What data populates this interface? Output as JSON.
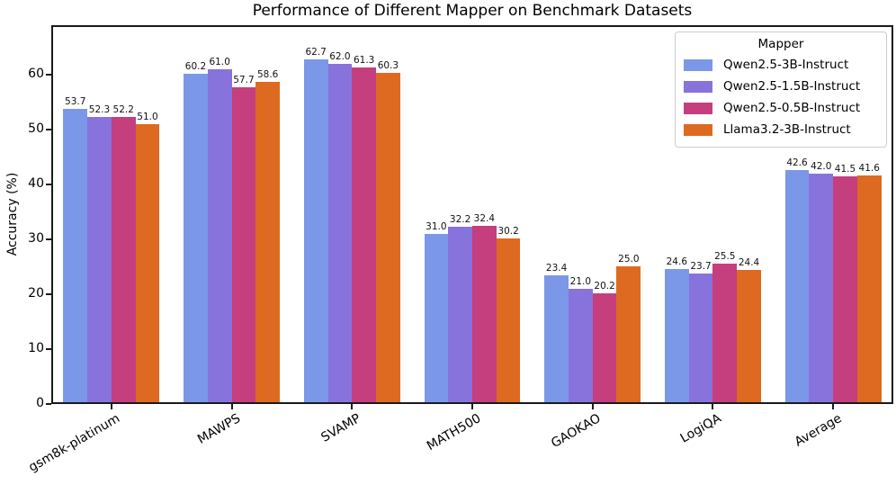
{
  "figure": {
    "background": "#ffffff",
    "spine_color": "#1a1a1a"
  },
  "chart_data": {
    "type": "bar",
    "title": "Performance of Different Mapper on Benchmark Datasets",
    "xlabel": "",
    "ylabel": "Accuracy (%)",
    "categories": [
      "gsm8k-platinum",
      "MAWPS",
      "SVAMP",
      "MATH500",
      "GAOKAO",
      "LogiQA",
      "Average"
    ],
    "series": [
      {
        "name": "Qwen2.5-3B-Instruct",
        "color": "#7B97E8",
        "values": [
          53.7,
          60.2,
          62.7,
          31.0,
          23.4,
          24.6,
          42.6
        ]
      },
      {
        "name": "Qwen2.5-1.5B-Instruct",
        "color": "#8872DC",
        "values": [
          52.3,
          61.0,
          62.0,
          32.2,
          21.0,
          23.7,
          42.0
        ]
      },
      {
        "name": "Qwen2.5-0.5B-Instruct",
        "color": "#C53E7E",
        "values": [
          52.2,
          57.7,
          61.3,
          32.4,
          20.2,
          25.5,
          41.5
        ]
      },
      {
        "name": "Llama3.2-3B-Instruct",
        "color": "#DD6A20",
        "values": [
          51.0,
          58.6,
          60.3,
          30.2,
          25.0,
          24.4,
          41.6
        ]
      }
    ],
    "ylim": [
      0,
      68.97
    ],
    "yticks": [
      0,
      10,
      20,
      30,
      40,
      50,
      60
    ],
    "grid": false,
    "bar_value_labels": true,
    "legend": {
      "title": "Mapper",
      "position": "upper right"
    }
  }
}
